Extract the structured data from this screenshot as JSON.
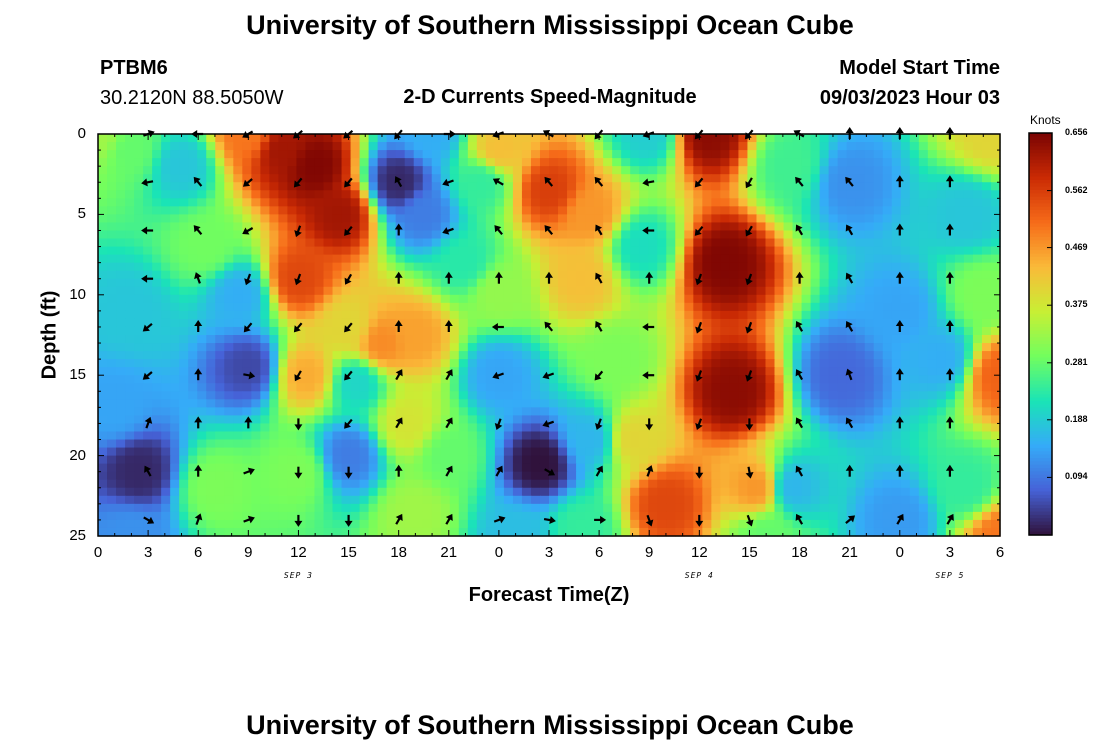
{
  "header": {
    "title_top": "University of Southern Mississippi Ocean Cube",
    "station_id": "PTBM6",
    "station_coords": "30.2120N  88.5050W",
    "plot_title": "2-D Currents Speed-Magnitude",
    "model_start_label": "Model Start Time",
    "model_start_value": "09/03/2023 Hour 03",
    "title_bottom": "University of Southern Mississippi Ocean Cube"
  },
  "chart_data": {
    "type": "heatmap",
    "title": "2-D Currents Speed-Magnitude",
    "xlabel": "Forecast Time(Z)",
    "ylabel": "Depth (ft)",
    "x_range_hours": [
      0,
      54
    ],
    "y_range": [
      0,
      25
    ],
    "x_ticks": [
      {
        "hour": 0,
        "label": "0"
      },
      {
        "hour": 3,
        "label": "3"
      },
      {
        "hour": 6,
        "label": "6"
      },
      {
        "hour": 9,
        "label": "9"
      },
      {
        "hour": 12,
        "label": "12"
      },
      {
        "hour": 15,
        "label": "15"
      },
      {
        "hour": 18,
        "label": "18"
      },
      {
        "hour": 21,
        "label": "21"
      },
      {
        "hour": 24,
        "label": "0"
      },
      {
        "hour": 27,
        "label": "3"
      },
      {
        "hour": 30,
        "label": "6"
      },
      {
        "hour": 33,
        "label": "9"
      },
      {
        "hour": 36,
        "label": "12"
      },
      {
        "hour": 39,
        "label": "15"
      },
      {
        "hour": 42,
        "label": "18"
      },
      {
        "hour": 45,
        "label": "21"
      },
      {
        "hour": 48,
        "label": "0"
      },
      {
        "hour": 51,
        "label": "3"
      },
      {
        "hour": 54,
        "label": "6"
      }
    ],
    "y_ticks": [
      {
        "value": 0,
        "label": "0"
      },
      {
        "value": 5,
        "label": "5"
      },
      {
        "value": 10,
        "label": "10"
      },
      {
        "value": 15,
        "label": "15"
      },
      {
        "value": 20,
        "label": "20"
      },
      {
        "value": 25,
        "label": "25"
      }
    ],
    "day_labels": [
      {
        "hour": 12,
        "label": "SEP 3"
      },
      {
        "hour": 36,
        "label": "SEP 4"
      },
      {
        "hour": 51,
        "label": "SEP 5"
      }
    ],
    "colorbar": {
      "unit": "Knots",
      "min": 0.0,
      "max": 0.656,
      "ticks": [
        "0.656",
        "0.562",
        "0.469",
        "0.375",
        "0.281",
        "0.188",
        "0.094"
      ],
      "colors": [
        "#30123b",
        "#4662d7",
        "#35abf8",
        "#1ae4b6",
        "#72fe5e",
        "#c8ef34",
        "#faba39",
        "#f66b19",
        "#ca2a04",
        "#7a0403"
      ]
    },
    "speed_features_knots": [
      {
        "h": 0,
        "d": 0,
        "v": 0.33
      },
      {
        "h": 2,
        "d": 1,
        "v": 0.28
      },
      {
        "h": 5,
        "d": 2,
        "v": 0.18
      },
      {
        "h": 2,
        "d": 11,
        "v": 0.18
      },
      {
        "h": 1,
        "d": 17,
        "v": 0.14
      },
      {
        "h": 2.5,
        "d": 21,
        "v": 0.02
      },
      {
        "h": 2,
        "d": 25,
        "v": 0.12
      },
      {
        "h": 6.5,
        "d": 7,
        "v": 0.29
      },
      {
        "h": 7,
        "d": 22,
        "v": 0.3
      },
      {
        "h": 9,
        "d": 14.5,
        "v": 0.05
      },
      {
        "h": 8.5,
        "d": 10,
        "v": 0.15
      },
      {
        "h": 9,
        "d": 0,
        "v": 0.5
      },
      {
        "h": 11,
        "d": 1,
        "v": 0.62
      },
      {
        "h": 13,
        "d": 2,
        "v": 0.65
      },
      {
        "h": 14.5,
        "d": 5,
        "v": 0.62
      },
      {
        "h": 12,
        "d": 9,
        "v": 0.55
      },
      {
        "h": 12.5,
        "d": 15,
        "v": 0.45
      },
      {
        "h": 12,
        "d": 21,
        "v": 0.3
      },
      {
        "h": 15,
        "d": 20,
        "v": 0.1
      },
      {
        "h": 15.5,
        "d": 15.5,
        "v": 0.2
      },
      {
        "h": 15,
        "d": 12,
        "v": 0.4
      },
      {
        "h": 17,
        "d": 13,
        "v": 0.48
      },
      {
        "h": 19,
        "d": 12.5,
        "v": 0.46
      },
      {
        "h": 18.5,
        "d": 18,
        "v": 0.38
      },
      {
        "h": 19,
        "d": 23.5,
        "v": 0.33
      },
      {
        "h": 21,
        "d": 20,
        "v": 0.28
      },
      {
        "h": 18,
        "d": 3,
        "v": 0.02
      },
      {
        "h": 19.5,
        "d": 5,
        "v": 0.1
      },
      {
        "h": 20,
        "d": 0,
        "v": 0.15
      },
      {
        "h": 22,
        "d": 8,
        "v": 0.23
      },
      {
        "h": 23,
        "d": 3,
        "v": 0.24
      },
      {
        "h": 24,
        "d": 9.8,
        "v": 0.32
      },
      {
        "h": 24,
        "d": 1,
        "v": 0.43
      },
      {
        "h": 27,
        "d": 3.5,
        "v": 0.56
      },
      {
        "h": 29.5,
        "d": 5,
        "v": 0.47
      },
      {
        "h": 29,
        "d": 9,
        "v": 0.43
      },
      {
        "h": 24,
        "d": 15,
        "v": 0.14
      },
      {
        "h": 26.5,
        "d": 20.5,
        "v": 0.0
      },
      {
        "h": 25,
        "d": 25,
        "v": 0.17
      },
      {
        "h": 29.5,
        "d": 19,
        "v": 0.16
      },
      {
        "h": 29,
        "d": 24.5,
        "v": 0.24
      },
      {
        "h": 31,
        "d": 14,
        "v": 0.3
      },
      {
        "h": 32,
        "d": 19,
        "v": 0.4
      },
      {
        "h": 33,
        "d": 0,
        "v": 0.19
      },
      {
        "h": 32.5,
        "d": 7,
        "v": 0.21
      },
      {
        "h": 34,
        "d": 23,
        "v": 0.55
      },
      {
        "h": 36.5,
        "d": 0,
        "v": 0.64
      },
      {
        "h": 37.5,
        "d": 8,
        "v": 0.65
      },
      {
        "h": 38,
        "d": 16,
        "v": 0.64
      },
      {
        "h": 39.5,
        "d": 22,
        "v": 0.47
      },
      {
        "h": 40,
        "d": 25,
        "v": 0.28
      },
      {
        "h": 41.5,
        "d": 2,
        "v": 0.25
      },
      {
        "h": 41.5,
        "d": 22,
        "v": 0.16
      },
      {
        "h": 44.5,
        "d": 15,
        "v": 0.08
      },
      {
        "h": 45,
        "d": 3,
        "v": 0.12
      },
      {
        "h": 48,
        "d": 11,
        "v": 0.14
      },
      {
        "h": 48,
        "d": 24,
        "v": 0.13
      },
      {
        "h": 50.5,
        "d": 14,
        "v": 0.15
      },
      {
        "h": 52,
        "d": 5,
        "v": 0.18
      },
      {
        "h": 52,
        "d": 22,
        "v": 0.24
      },
      {
        "h": 53,
        "d": 10,
        "v": 0.3
      },
      {
        "h": 53.5,
        "d": 0,
        "v": 0.4
      },
      {
        "h": 54,
        "d": 15,
        "v": 0.52
      },
      {
        "h": 54,
        "d": 25,
        "v": 0.5
      }
    ],
    "vector_columns_hours": [
      3,
      6,
      9,
      12,
      15,
      18,
      21,
      24,
      27,
      30,
      33,
      36,
      39,
      42,
      45,
      48,
      51,
      54
    ],
    "vector_rows_depth": [
      0,
      3,
      6,
      9,
      12,
      15,
      18,
      21,
      24
    ],
    "vector_direction_deg": [
      [
        70,
        270,
        240,
        230,
        230,
        220,
        90,
        250,
        300,
        220,
        250,
        220,
        220,
        300,
        0,
        0,
        0,
        0
      ],
      [
        260,
        320,
        230,
        220,
        220,
        330,
        250,
        300,
        320,
        320,
        260,
        220,
        210,
        320,
        320,
        0,
        0,
        0
      ],
      [
        270,
        320,
        240,
        200,
        220,
        0,
        250,
        320,
        320,
        330,
        270,
        220,
        210,
        330,
        330,
        0,
        0,
        0
      ],
      [
        270,
        340,
        200,
        200,
        210,
        0,
        0,
        0,
        0,
        330,
        0,
        200,
        200,
        0,
        330,
        0,
        0,
        0
      ],
      [
        230,
        0,
        220,
        220,
        220,
        0,
        0,
        270,
        320,
        330,
        270,
        200,
        200,
        330,
        330,
        0,
        0,
        0
      ],
      [
        230,
        0,
        100,
        210,
        220,
        30,
        30,
        250,
        250,
        220,
        270,
        200,
        200,
        330,
        340,
        0,
        0,
        0
      ],
      [
        20,
        0,
        0,
        180,
        220,
        30,
        30,
        200,
        250,
        200,
        180,
        200,
        180,
        330,
        330,
        0,
        0,
        0
      ],
      [
        330,
        0,
        70,
        180,
        180,
        0,
        30,
        30,
        120,
        30,
        20,
        180,
        170,
        330,
        0,
        0,
        0,
        0
      ],
      [
        120,
        20,
        70,
        180,
        180,
        30,
        30,
        70,
        100,
        90,
        160,
        180,
        160,
        330,
        50,
        30,
        30,
        0
      ]
    ]
  }
}
